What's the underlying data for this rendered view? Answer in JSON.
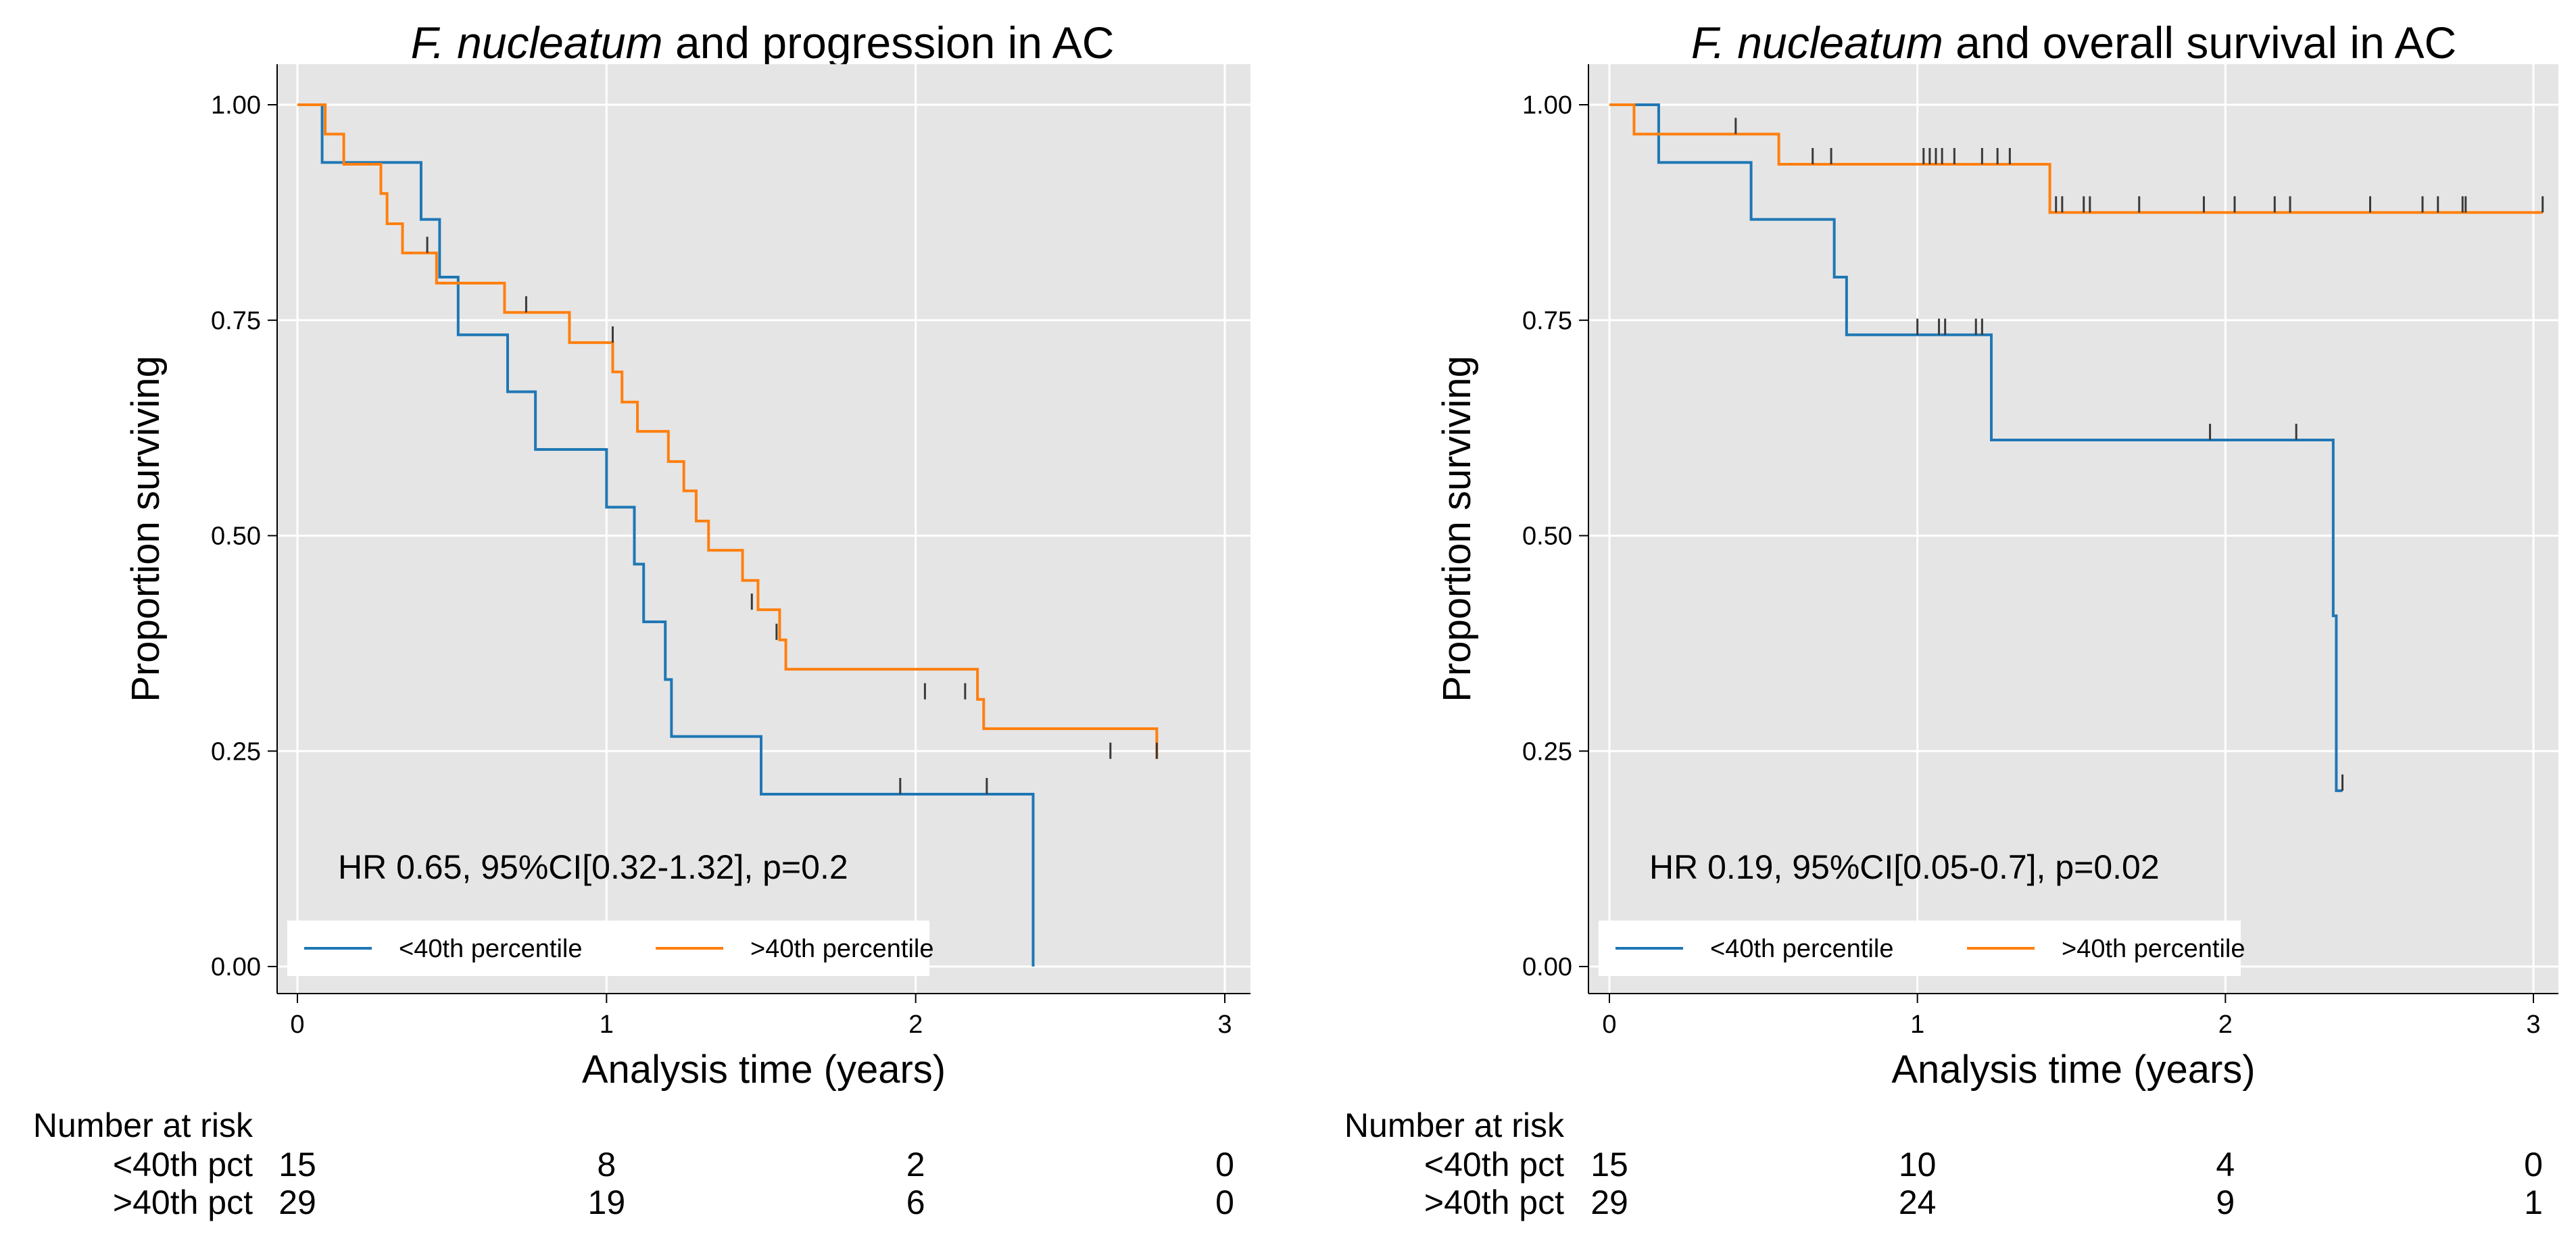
{
  "chart_data": [
    {
      "type": "line",
      "subtype": "kaplan-meier",
      "title_italic": "F. nucleatum",
      "title_rest": " and progression in AC",
      "xlabel": "Analysis time (years)",
      "ylabel": "Proportion surviving",
      "xlim": [
        0,
        3
      ],
      "ylim": [
        0,
        1
      ],
      "xticks": [
        "0",
        "1",
        "2",
        "3"
      ],
      "yticks": [
        "0.00",
        "0.25",
        "0.50",
        "0.75",
        "1.00"
      ],
      "grid": true,
      "annotation": "HR 0.65, 95%CI[0.32-1.32], p=0.2",
      "legend_position": "bottom",
      "series": [
        {
          "name": "<40th percentile",
          "color": "#1f77b4",
          "steps": [
            [
              0,
              1.0
            ],
            [
              0.08,
              0.933
            ],
            [
              0.4,
              0.867
            ],
            [
              0.46,
              0.8
            ],
            [
              0.52,
              0.733
            ],
            [
              0.68,
              0.667
            ],
            [
              0.77,
              0.6
            ],
            [
              1.0,
              0.533
            ],
            [
              1.09,
              0.467
            ],
            [
              1.12,
              0.4
            ],
            [
              1.19,
              0.333
            ],
            [
              1.21,
              0.267
            ],
            [
              1.5,
              0.2
            ],
            [
              2.38,
              0.0
            ]
          ],
          "end": 2.38,
          "censored": [
            [
              1.95,
              0.2
            ],
            [
              2.23,
              0.2
            ]
          ]
        },
        {
          "name": ">40th percentile",
          "color": "#ff7f0e",
          "steps": [
            [
              0,
              1.0
            ],
            [
              0.09,
              0.966
            ],
            [
              0.15,
              0.931
            ],
            [
              0.27,
              0.897
            ],
            [
              0.29,
              0.862
            ],
            [
              0.34,
              0.828
            ],
            [
              0.45,
              0.793
            ],
            [
              0.67,
              0.759
            ],
            [
              0.88,
              0.724
            ],
            [
              1.02,
              0.69
            ],
            [
              1.05,
              0.655
            ],
            [
              1.1,
              0.621
            ],
            [
              1.2,
              0.586
            ],
            [
              1.25,
              0.552
            ],
            [
              1.29,
              0.517
            ],
            [
              1.33,
              0.483
            ],
            [
              1.44,
              0.448
            ],
            [
              1.49,
              0.414
            ],
            [
              1.56,
              0.379
            ],
            [
              1.58,
              0.345
            ],
            [
              2.2,
              0.31
            ],
            [
              2.22,
              0.276
            ],
            [
              2.78,
              0.241
            ]
          ],
          "end": 2.78,
          "censored": [
            [
              0.42,
              0.828
            ],
            [
              0.74,
              0.759
            ],
            [
              1.02,
              0.724
            ],
            [
              1.47,
              0.414
            ],
            [
              1.55,
              0.379
            ],
            [
              2.03,
              0.31
            ],
            [
              2.16,
              0.31
            ],
            [
              2.63,
              0.241
            ],
            [
              2.78,
              0.241
            ]
          ]
        }
      ],
      "risk_table": {
        "title": "Number at risk",
        "rows": [
          {
            "label": "<40th pct",
            "values": [
              "15",
              "8",
              "2",
              "0"
            ]
          },
          {
            "label": ">40th pct",
            "values": [
              "29",
              "19",
              "6",
              "0"
            ]
          }
        ]
      }
    },
    {
      "type": "line",
      "subtype": "kaplan-meier",
      "title_italic": "F. nucleatum",
      "title_rest": " and overall survival in AC",
      "xlabel": "Analysis time (years)",
      "ylabel": "Proportion surviving",
      "xlim": [
        0,
        3
      ],
      "ylim": [
        0,
        1
      ],
      "xticks": [
        "0",
        "1",
        "2",
        "3"
      ],
      "yticks": [
        "0.00",
        "0.25",
        "0.50",
        "0.75",
        "1.00"
      ],
      "grid": true,
      "annotation": "HR 0.19, 95%CI[0.05-0.7], p=0.02",
      "legend_position": "bottom",
      "series": [
        {
          "name": "<40th percentile",
          "color": "#1f77b4",
          "steps": [
            [
              0,
              1.0
            ],
            [
              0.16,
              0.933
            ],
            [
              0.46,
              0.867
            ],
            [
              0.73,
              0.8
            ],
            [
              0.77,
              0.733
            ],
            [
              1.24,
              0.611
            ],
            [
              2.35,
              0.407
            ],
            [
              2.36,
              0.204
            ]
          ],
          "end": 2.38,
          "censored": [
            [
              1.0,
              0.733
            ],
            [
              1.07,
              0.733
            ],
            [
              1.09,
              0.733
            ],
            [
              1.19,
              0.733
            ],
            [
              1.21,
              0.733
            ],
            [
              1.95,
              0.611
            ],
            [
              2.23,
              0.611
            ],
            [
              2.38,
              0.204
            ]
          ]
        },
        {
          "name": ">40th percentile",
          "color": "#ff7f0e",
          "steps": [
            [
              0,
              1.0
            ],
            [
              0.08,
              0.966
            ],
            [
              0.55,
              0.931
            ],
            [
              1.43,
              0.875
            ]
          ],
          "end": 3.03,
          "censored": [
            [
              0.41,
              0.966
            ],
            [
              0.66,
              0.931
            ],
            [
              0.72,
              0.931
            ],
            [
              1.02,
              0.931
            ],
            [
              1.04,
              0.931
            ],
            [
              1.06,
              0.931
            ],
            [
              1.08,
              0.931
            ],
            [
              1.12,
              0.931
            ],
            [
              1.21,
              0.931
            ],
            [
              1.26,
              0.931
            ],
            [
              1.3,
              0.931
            ],
            [
              1.45,
              0.875
            ],
            [
              1.47,
              0.875
            ],
            [
              1.54,
              0.875
            ],
            [
              1.56,
              0.875
            ],
            [
              1.72,
              0.875
            ],
            [
              1.93,
              0.875
            ],
            [
              2.03,
              0.875
            ],
            [
              2.16,
              0.875
            ],
            [
              2.21,
              0.875
            ],
            [
              2.47,
              0.875
            ],
            [
              2.64,
              0.875
            ],
            [
              2.69,
              0.875
            ],
            [
              2.77,
              0.875
            ],
            [
              2.78,
              0.875
            ],
            [
              3.03,
              0.875
            ]
          ]
        }
      ],
      "risk_table": {
        "title": "Number at risk",
        "rows": [
          {
            "label": "<40th pct",
            "values": [
              "15",
              "10",
              "4",
              "0"
            ]
          },
          {
            "label": ">40th pct",
            "values": [
              "29",
              "24",
              "9",
              "1"
            ]
          }
        ]
      }
    }
  ]
}
